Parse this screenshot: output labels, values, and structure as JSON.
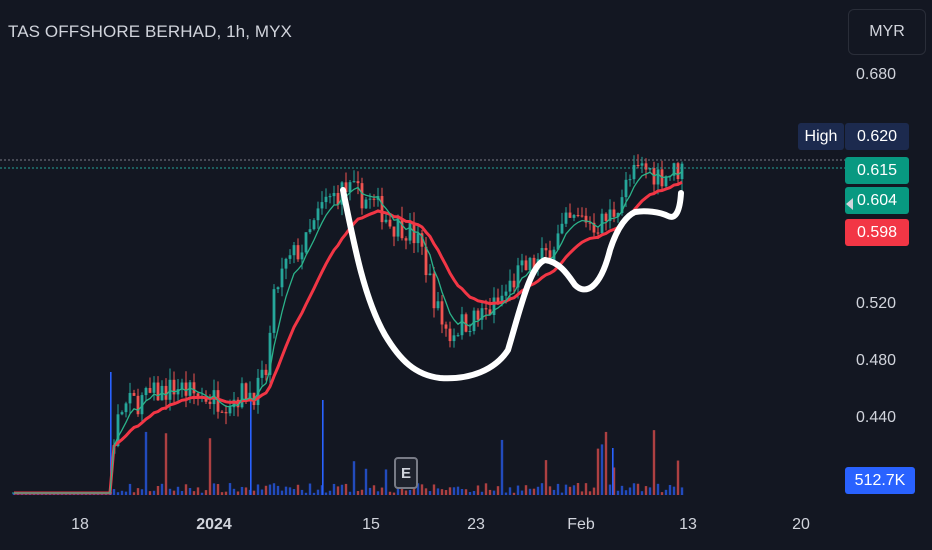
{
  "header": {
    "title": "TAS OFFSHORE BERHAD, 1h, MYX"
  },
  "currency": "MYR",
  "y_axis": {
    "ticks": [
      {
        "label": "0.680",
        "value": 0.68
      },
      {
        "label": "0.520",
        "value": 0.52
      },
      {
        "label": "0.480",
        "value": 0.48
      },
      {
        "label": "0.440",
        "value": 0.44
      }
    ]
  },
  "x_axis": {
    "ticks": [
      {
        "label": "18",
        "bold": false
      },
      {
        "label": "2024",
        "bold": true
      },
      {
        "label": "15",
        "bold": false
      },
      {
        "label": "23",
        "bold": false
      },
      {
        "label": "Feb",
        "bold": false
      },
      {
        "label": "13",
        "bold": false
      },
      {
        "label": "20",
        "bold": false
      }
    ]
  },
  "tags": {
    "high_label": "High",
    "high_value": "0.620",
    "last_price": "0.615",
    "ema_fast": "0.604",
    "ema_slow": "0.598",
    "volume": "512.7K"
  },
  "earnings_badge": "E",
  "colors": {
    "background": "#131722",
    "up": "#26a69a",
    "down": "#ef5350",
    "ema_fast": "#2bb38a",
    "ema_slow": "#f23645",
    "high_tag": "#1c2a4e",
    "volume_tag": "#2962ff",
    "annotation": "#ffffff"
  },
  "chart_data": {
    "type": "candlestick",
    "title": "TAS OFFSHORE BERHAD, 1h, MYX",
    "currency": "MYR",
    "ylim": [
      0.415,
      0.7
    ],
    "price_path": [
      0.415,
      0.415,
      0.415,
      0.415,
      0.415,
      0.415,
      0.415,
      0.415,
      0.415,
      0.415,
      0.415,
      0.445,
      0.45,
      0.452,
      0.455,
      0.458,
      0.46,
      0.462,
      0.458,
      0.455,
      0.455,
      0.453,
      0.452,
      0.455,
      0.458,
      0.458,
      0.47,
      0.53,
      0.545,
      0.555,
      0.56,
      0.575,
      0.59,
      0.595,
      0.6,
      0.598,
      0.595,
      0.59,
      0.585,
      0.575,
      0.575,
      0.57,
      0.56,
      0.535,
      0.51,
      0.498,
      0.505,
      0.508,
      0.51,
      0.515,
      0.52,
      0.53,
      0.54,
      0.545,
      0.548,
      0.555,
      0.565,
      0.575,
      0.578,
      0.58,
      0.575,
      0.578,
      0.585,
      0.6,
      0.61,
      0.615,
      0.612,
      0.61,
      0.612,
      0.615
    ],
    "series": [
      {
        "name": "0.604",
        "role": "ema_fast",
        "last": 0.604
      },
      {
        "name": "0.598",
        "role": "ema_slow",
        "last": 0.598
      }
    ],
    "high": 0.62,
    "last": 0.615,
    "last_volume": "512.7K"
  }
}
